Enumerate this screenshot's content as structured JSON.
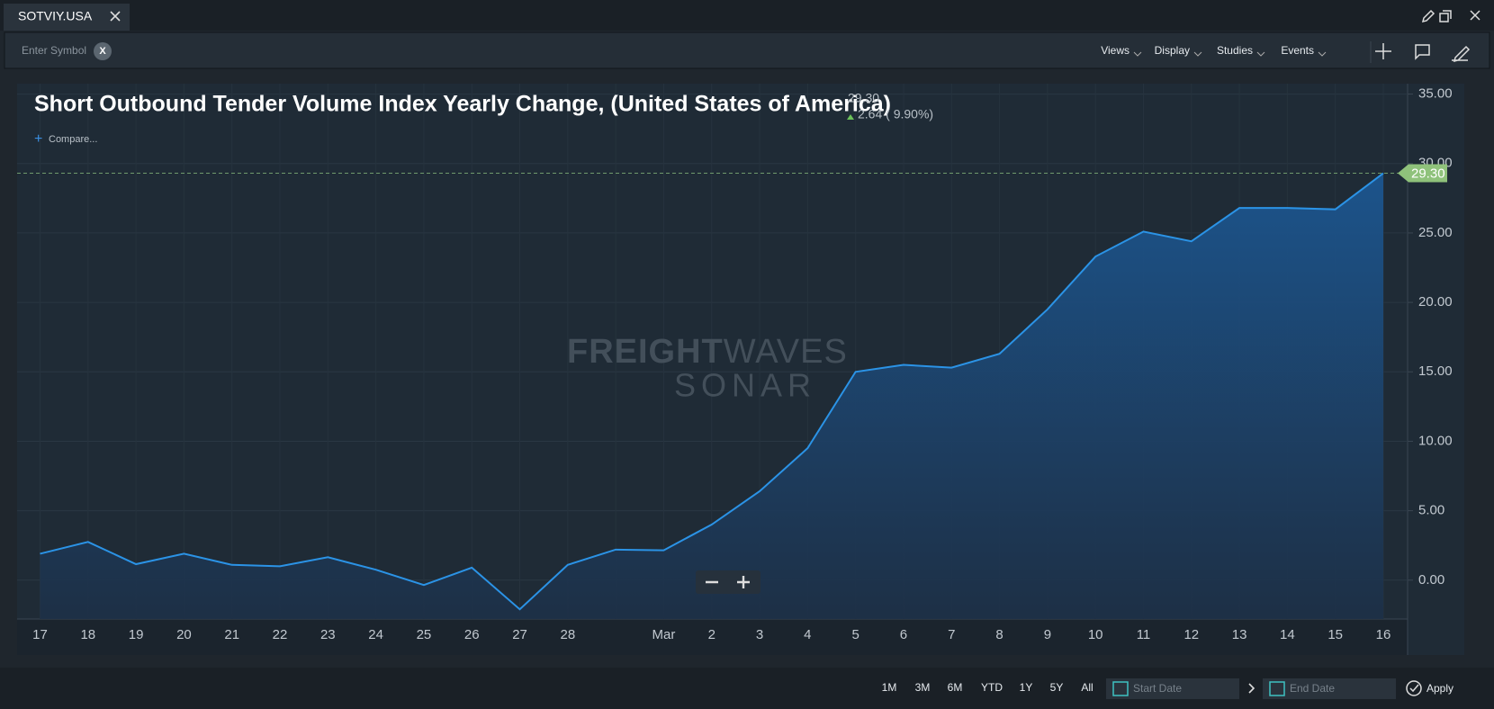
{
  "tab": {
    "title": "SOTVIY.USA"
  },
  "toolbar": {
    "symbol_placeholder": "Enter Symbol",
    "clear": "X",
    "menus": [
      "Views",
      "Display",
      "Studies",
      "Events"
    ]
  },
  "header": {
    "price": "29.30",
    "change": "2.64 ( 9.90%)",
    "compare": "Compare..."
  },
  "watermark": {
    "bold": "FREIGHT",
    "light": "WAVES",
    "sub": "SONAR"
  },
  "footer": {
    "ranges": [
      "1M",
      "3M",
      "6M",
      "YTD",
      "1Y",
      "5Y",
      "All"
    ],
    "start": "Start Date",
    "end": "End Date",
    "apply": "Apply"
  },
  "chart_data": {
    "type": "area",
    "title": "Short Outbound Tender Volume Index Yearly Change, (United States of America)",
    "categories": [
      "17",
      "18",
      "19",
      "20",
      "21",
      "22",
      "23",
      "24",
      "25",
      "26",
      "27",
      "28",
      null,
      "Mar",
      "2",
      "3",
      "4",
      "5",
      "6",
      "7",
      "8",
      "9",
      "10",
      "11",
      "12",
      "13",
      "14",
      "15",
      "16"
    ],
    "values": [
      1.9,
      2.75,
      1.15,
      1.9,
      1.1,
      1.0,
      1.65,
      0.75,
      -0.35,
      0.9,
      -2.1,
      1.1,
      2.2,
      2.15,
      4.0,
      6.4,
      9.5,
      15.0,
      15.5,
      15.3,
      16.3,
      19.5,
      23.3,
      25.1,
      24.4,
      26.8,
      26.8,
      26.7,
      29.3
    ],
    "color": "#2b93e6",
    "ylim": [
      -2.8,
      35.75
    ],
    "yticks": [
      {
        "value": 0,
        "label": "0.00"
      },
      {
        "value": 5,
        "label": "5.00"
      },
      {
        "value": 10,
        "label": "10.00"
      },
      {
        "value": 15,
        "label": "15.00"
      },
      {
        "value": 20,
        "label": "20.00"
      },
      {
        "value": 25,
        "label": "25.00"
      },
      {
        "value": 30,
        "label": "30.00"
      },
      {
        "value": 35,
        "label": "35.00"
      }
    ],
    "grid": true
  }
}
